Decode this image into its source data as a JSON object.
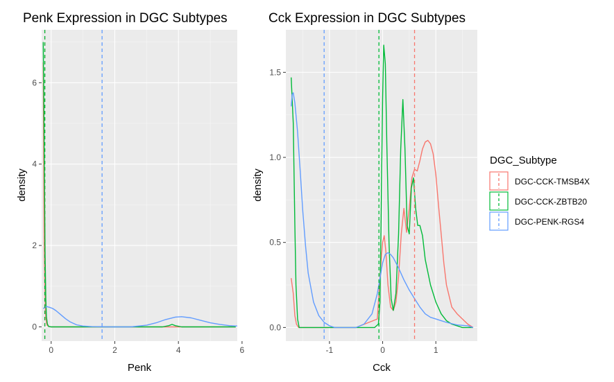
{
  "chart_data": [
    {
      "type": "line",
      "subtype": "density",
      "title": "Penk Expression in DGC Subtypes",
      "xlabel": "Penk",
      "ylabel": "density",
      "xlim": [
        -0.3,
        5.85
      ],
      "ylim": [
        -0.35,
        7.3
      ],
      "xticks": [
        0,
        2,
        4,
        6
      ],
      "yticks": [
        0,
        2,
        4,
        6
      ],
      "grid": true,
      "series": [
        {
          "name": "DGC-CCK-TMSB4X",
          "color": "#F8766D",
          "mean_line": -0.2,
          "x": [
            -0.25,
            -0.23,
            -0.22,
            -0.2,
            -0.18,
            -0.15,
            -0.12,
            -0.08,
            0.0,
            0.2,
            1.0,
            2.0,
            3.0,
            4.0,
            5.0,
            5.8
          ],
          "y": [
            6.5,
            3.5,
            2.0,
            1.0,
            0.35,
            0.1,
            0.03,
            0.01,
            0.0,
            0.0,
            0.0,
            0.0,
            0.0,
            0.0,
            0.0,
            0.0
          ]
        },
        {
          "name": "DGC-CCK-ZBTB20",
          "color": "#00BA38",
          "mean_line": -0.2,
          "x": [
            -0.25,
            -0.23,
            -0.21,
            -0.19,
            -0.17,
            -0.15,
            -0.12,
            -0.08,
            0.0,
            1.0,
            2.0,
            3.0,
            3.5,
            3.7,
            3.8,
            3.9,
            4.1,
            5.0,
            5.8
          ],
          "y": [
            7.0,
            5.5,
            3.5,
            1.8,
            0.7,
            0.25,
            0.07,
            0.01,
            0.0,
            0.0,
            0.0,
            0.0,
            0.0,
            0.03,
            0.06,
            0.03,
            0.0,
            0.0,
            0.0
          ]
        },
        {
          "name": "DGC-PENK-RGS4",
          "color": "#619CFF",
          "mean_line": 1.6,
          "x": [
            -0.25,
            -0.15,
            -0.05,
            0.05,
            0.15,
            0.3,
            0.45,
            0.6,
            0.8,
            1.0,
            1.3,
            1.8,
            2.5,
            3.0,
            3.3,
            3.6,
            3.9,
            4.1,
            4.4,
            4.7,
            5.0,
            5.3,
            5.6,
            5.85
          ],
          "y": [
            0.45,
            0.5,
            0.48,
            0.45,
            0.4,
            0.3,
            0.2,
            0.12,
            0.05,
            0.02,
            0.005,
            0.0,
            0.0,
            0.04,
            0.1,
            0.18,
            0.24,
            0.25,
            0.22,
            0.16,
            0.1,
            0.06,
            0.03,
            0.02
          ]
        }
      ]
    },
    {
      "type": "line",
      "subtype": "density",
      "title": "Cck Expression in DGC Subtypes",
      "xlabel": "Cck",
      "ylabel": "density",
      "xlim": [
        -1.82,
        1.78
      ],
      "ylim": [
        -0.08,
        1.75
      ],
      "xticks": [
        -1,
        0,
        1
      ],
      "yticks": [
        0.0,
        0.5,
        1.0,
        1.5
      ],
      "ytick_labels": [
        "0.0",
        "0.5",
        "1.0",
        "1.5"
      ],
      "grid": true,
      "series": [
        {
          "name": "DGC-CCK-TMSB4X",
          "color": "#F8766D",
          "mean_line": 0.6,
          "x": [
            -1.72,
            -1.68,
            -1.65,
            -1.62,
            -1.58,
            -1.5,
            -1.0,
            -0.5,
            -0.1,
            -0.05,
            0.0,
            0.03,
            0.06,
            0.1,
            0.15,
            0.2,
            0.25,
            0.3,
            0.35,
            0.4,
            0.45,
            0.5,
            0.55,
            0.6,
            0.65,
            0.7,
            0.75,
            0.8,
            0.85,
            0.9,
            0.95,
            1.0,
            1.05,
            1.1,
            1.15,
            1.2,
            1.3,
            1.4,
            1.5,
            1.6,
            1.7
          ],
          "y": [
            0.29,
            0.2,
            0.07,
            0.02,
            0.0,
            0.0,
            0.0,
            0.0,
            0.05,
            0.3,
            0.5,
            0.54,
            0.45,
            0.25,
            0.12,
            0.1,
            0.15,
            0.3,
            0.55,
            0.7,
            0.56,
            0.7,
            0.88,
            0.93,
            0.92,
            0.98,
            1.05,
            1.09,
            1.1,
            1.08,
            1.02,
            0.9,
            0.72,
            0.55,
            0.38,
            0.25,
            0.12,
            0.08,
            0.05,
            0.02,
            0.0
          ]
        },
        {
          "name": "DGC-CCK-ZBTB20",
          "color": "#00BA38",
          "mean_line": -0.07,
          "x": [
            -1.72,
            -1.68,
            -1.65,
            -1.63,
            -1.6,
            -1.57,
            -1.5,
            -1.0,
            -0.5,
            -0.15,
            -0.08,
            -0.05,
            -0.03,
            0.0,
            0.02,
            0.05,
            0.08,
            0.12,
            0.16,
            0.2,
            0.25,
            0.3,
            0.34,
            0.38,
            0.42,
            0.46,
            0.5,
            0.54,
            0.58,
            0.62,
            0.66,
            0.7,
            0.75,
            0.8,
            0.9,
            1.0,
            1.1,
            1.2,
            1.3,
            1.5,
            1.7
          ],
          "y": [
            1.47,
            1.2,
            0.6,
            0.25,
            0.05,
            0.0,
            0.0,
            0.0,
            0.0,
            0.0,
            0.02,
            0.15,
            0.6,
            1.35,
            1.66,
            1.55,
            1.05,
            0.5,
            0.17,
            0.1,
            0.2,
            0.55,
            1.05,
            1.34,
            1.05,
            0.6,
            0.55,
            0.82,
            0.88,
            0.7,
            0.6,
            0.6,
            0.54,
            0.4,
            0.25,
            0.15,
            0.08,
            0.04,
            0.02,
            0.0,
            0.0
          ]
        },
        {
          "name": "DGC-PENK-RGS4",
          "color": "#619CFF",
          "mean_line": -1.1,
          "x": [
            -1.72,
            -1.7,
            -1.68,
            -1.65,
            -1.6,
            -1.55,
            -1.5,
            -1.45,
            -1.4,
            -1.3,
            -1.2,
            -1.1,
            -1.0,
            -0.9,
            -0.7,
            -0.5,
            -0.35,
            -0.2,
            -0.1,
            0.0,
            0.05,
            0.1,
            0.15,
            0.2,
            0.3,
            0.4,
            0.5,
            0.6,
            0.7,
            0.8,
            0.9,
            1.0,
            1.2,
            1.4,
            1.6,
            1.7
          ],
          "y": [
            1.3,
            1.37,
            1.38,
            1.32,
            1.15,
            0.92,
            0.68,
            0.48,
            0.32,
            0.15,
            0.07,
            0.03,
            0.01,
            0.0,
            0.0,
            0.0,
            0.02,
            0.08,
            0.2,
            0.38,
            0.43,
            0.44,
            0.43,
            0.41,
            0.35,
            0.28,
            0.22,
            0.17,
            0.12,
            0.08,
            0.06,
            0.05,
            0.03,
            0.015,
            0.01,
            0.0
          ]
        }
      ]
    }
  ],
  "legend": {
    "title": "DGC_Subtype",
    "placement": "right",
    "items": [
      {
        "label": "DGC-CCK-TMSB4X",
        "color": "#F8766D"
      },
      {
        "label": "DGC-CCK-ZBTB20",
        "color": "#00BA38"
      },
      {
        "label": "DGC-PENK-RGS4",
        "color": "#619CFF"
      }
    ]
  }
}
